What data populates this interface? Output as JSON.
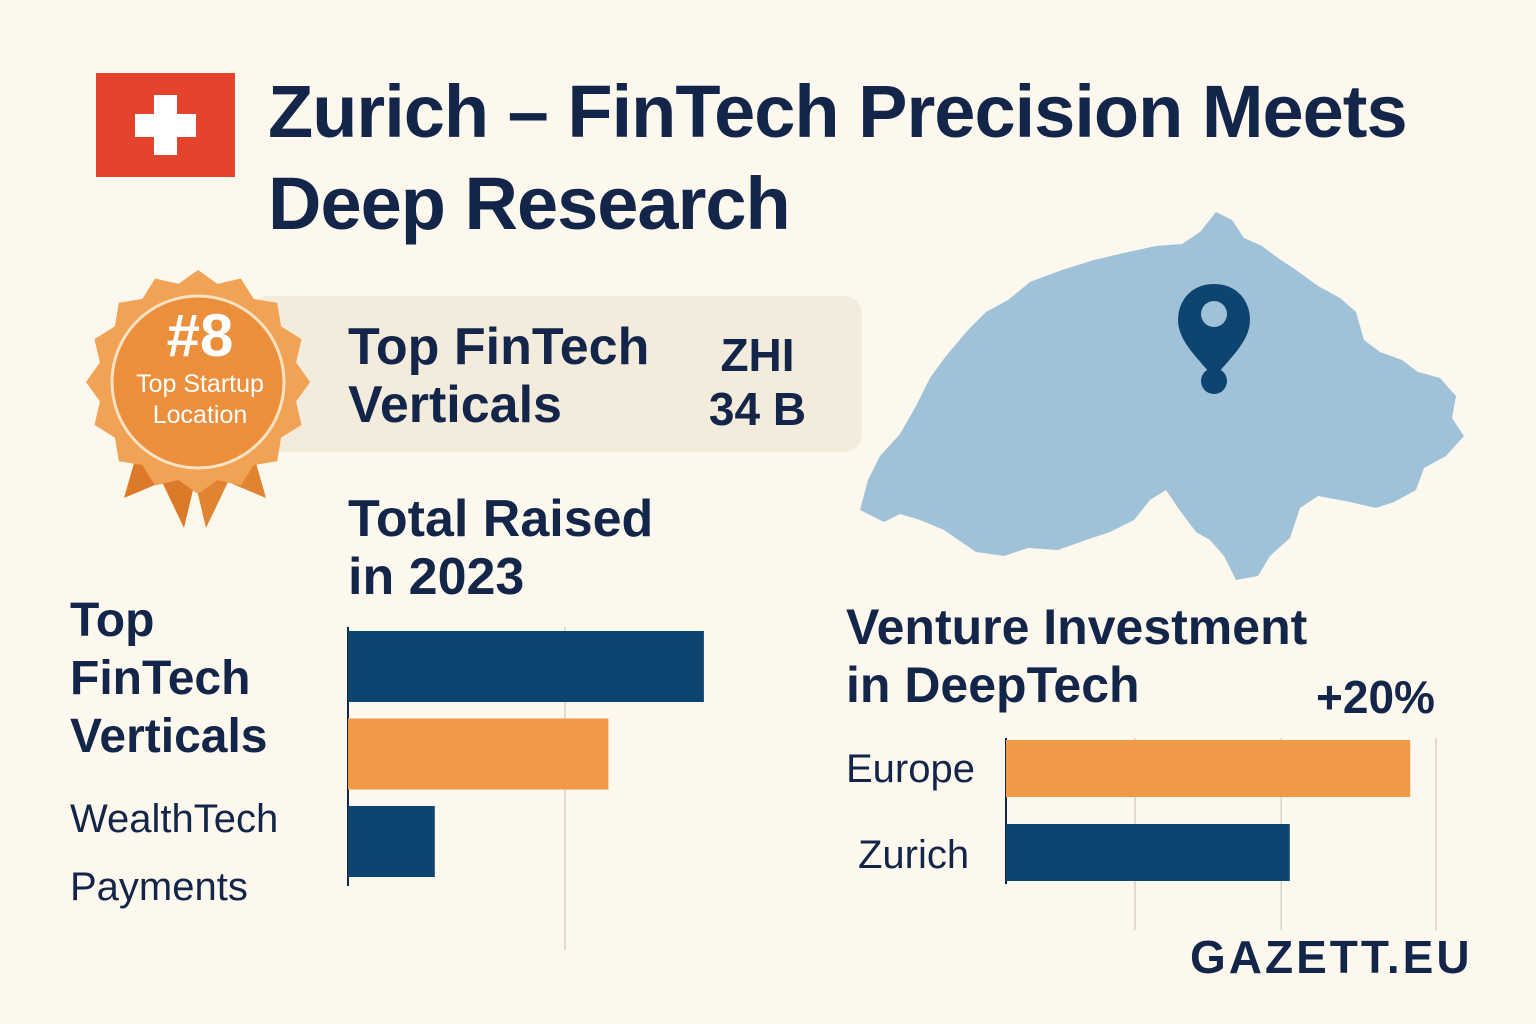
{
  "header": {
    "title": "Zurich – FinTech Precision Meets Deep Research",
    "flag_icon": "swiss-flag-icon"
  },
  "badge": {
    "rank": "#8",
    "line1": "Top Startup",
    "line2": "Location",
    "icon": "rosette-ribbon-icon"
  },
  "highlight": {
    "heading_line1": "Top FinTech",
    "heading_line2": "Verticals",
    "currency": "ZHI",
    "amount": "34 B"
  },
  "section": {
    "total_raised_line1": "Total Raised",
    "total_raised_line2": "in 2023",
    "left_heading_line1": "Top",
    "left_heading_line2": "FinTech",
    "left_heading_line3": "Verticals"
  },
  "map": {
    "icon": "switzerland-map-icon",
    "pin_icon": "location-pin-icon",
    "color": "#9fc2d8"
  },
  "chart_data": [
    {
      "type": "bar",
      "orientation": "horizontal",
      "categories": [
        "",
        "WealthTech",
        "Payments"
      ],
      "values": [
        82,
        60,
        20
      ],
      "colors": [
        "#0e4570",
        "#f09a48",
        "#0e4570"
      ],
      "xlim": [
        0,
        100
      ],
      "grid": true
    },
    {
      "type": "bar",
      "orientation": "horizontal",
      "title_line1": "Venture Investment",
      "title_line2": "in DeepTech",
      "annotation": "+20%",
      "categories": [
        "Europe",
        "Zurich"
      ],
      "values": [
        94,
        66
      ],
      "colors": [
        "#f09a48",
        "#0e4570"
      ],
      "xlim": [
        0,
        100
      ],
      "grid": true
    }
  ],
  "footer": {
    "brand": "GAZETT.EU"
  }
}
